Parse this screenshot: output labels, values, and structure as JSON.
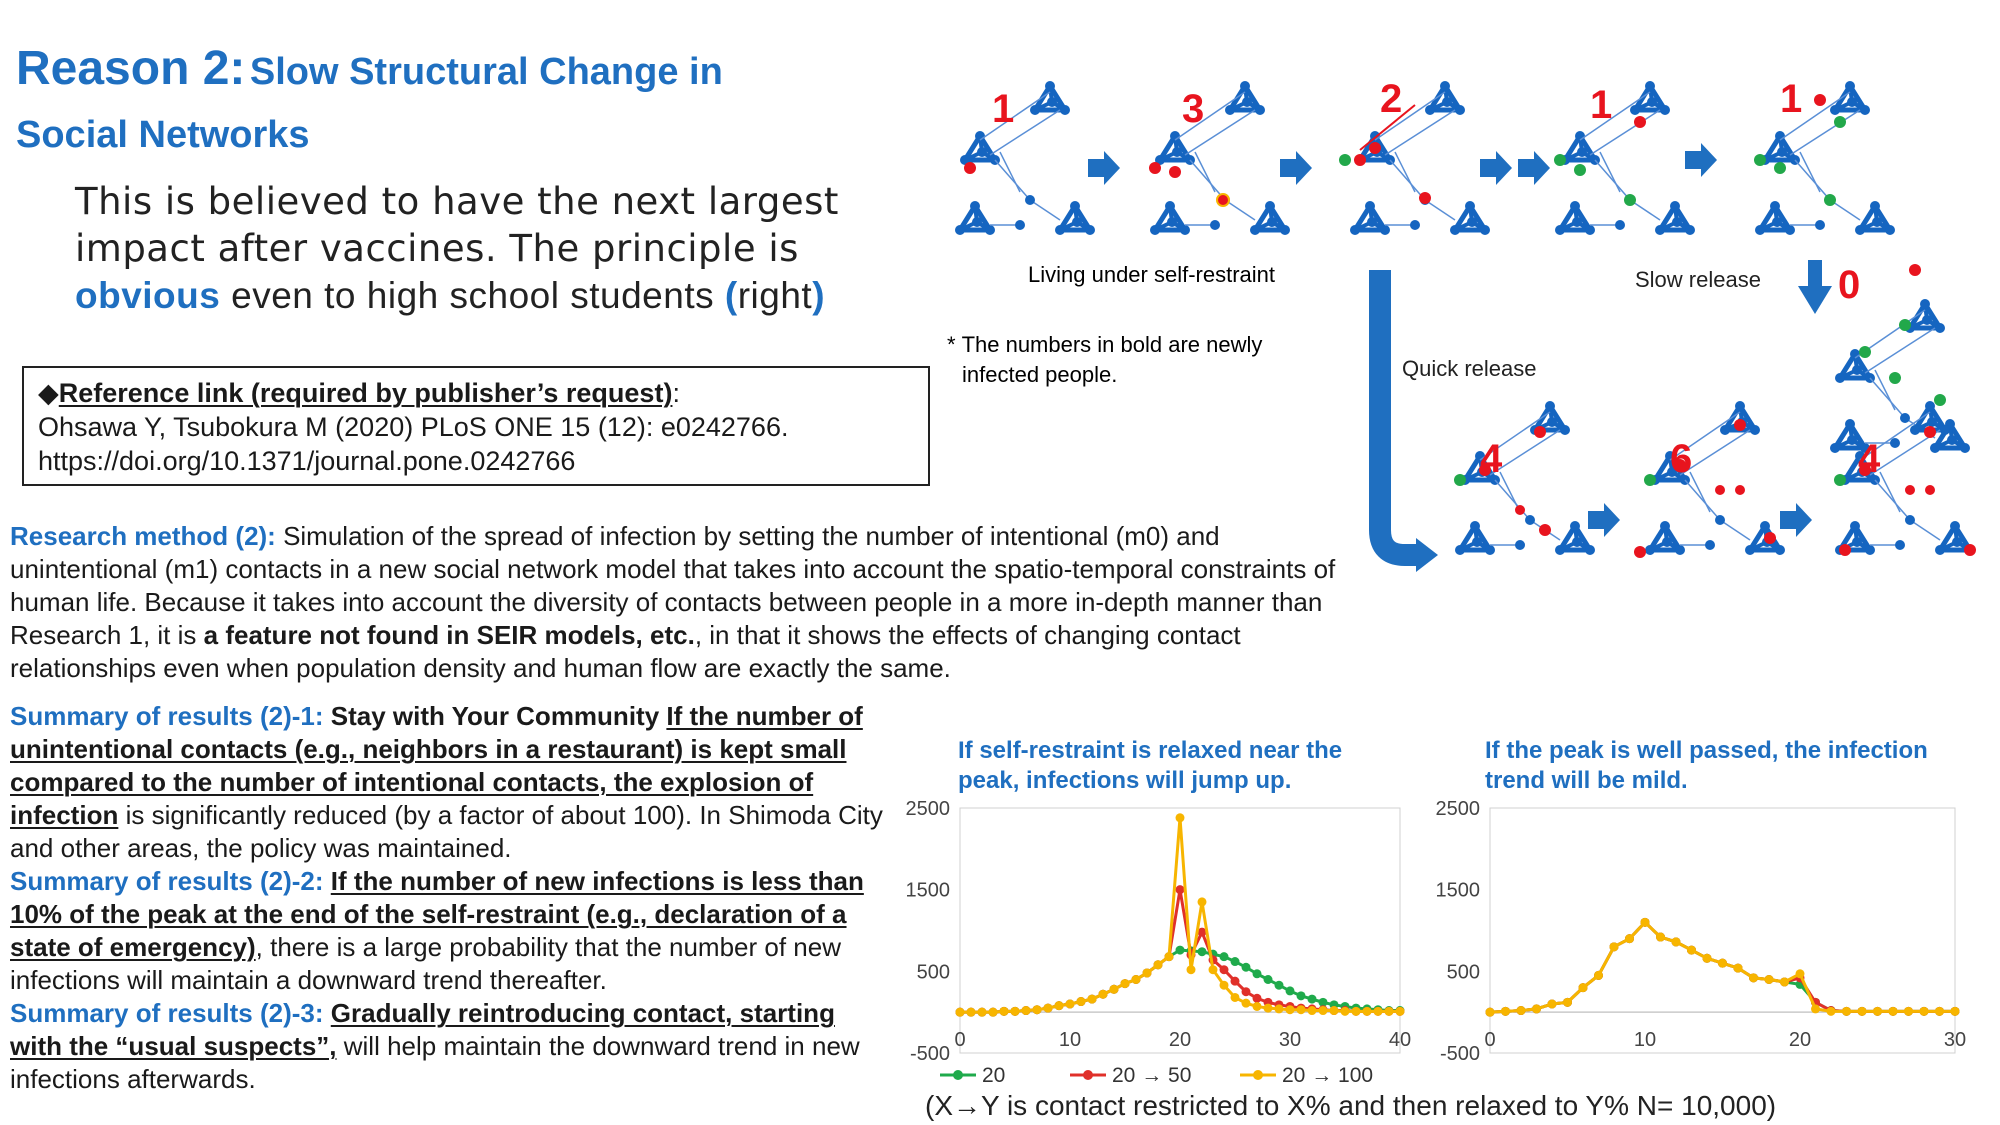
{
  "title": {
    "reason": "Reason 2:",
    "text1": "Slow Structural Change in",
    "text2": "Social Networks"
  },
  "intro": {
    "line1": "This is believed to have the next largest",
    "line2": "impact after vaccines. The principle is",
    "emph": "obvious",
    "line3_rest": " even to high school students ",
    "paren_open": "(",
    "right": "right",
    "paren_close": ")"
  },
  "reference": {
    "bullet": "◆",
    "label": "Reference link (required by publisher’s request)",
    "colon": ":",
    "citation": "Ohsawa Y, Tsubokura M (2020) PLoS ONE 15 (12): e0242766.",
    "url": "https://doi.org/10.1371/journal.pone.0242766"
  },
  "method": {
    "label": "Research method (2):",
    "t1": " Simulation of the spread of infection by setting the number of intentional (m0) and unintentional (m1) contacts in a new social network model that takes into account the spatio-temporal constraints of human life. Because it takes into account the diversity of contacts between people in a more in-depth manner than Research 1, it is ",
    "bold": "a feature not found in SEIR models, etc.",
    "t2": ", in that it shows the effects of changing contact relationships even when population density and human flow are exactly the same."
  },
  "summary": {
    "s1_label": "Summary of results (2)-1:",
    "s1_bold": " Stay with Your Community ",
    "s1_ul": "If the number of unintentional contacts (e.g., neighbors in a restaurant) is kept small compared to the number of intentional contacts, the explosion of infection",
    "s1_rest": " is significantly reduced (by a factor of about 100). In Shimoda City and other areas, the policy was maintained.",
    "s2_label": "Summary of results (2)-2:",
    "s2_ul": "If the number of new infections is less than 10% of the peak at the end of the self-restraint (e.g., declaration of a state of emergency)",
    "s2_rest": ", there is a large probability that the number of new infections will maintain a downward trend thereafter.",
    "s3_label": "Summary of results (2)-3:",
    "s3_ul": "Gradually reintroducing contact, starting with the “usual suspects”,",
    "s3_rest": " will help maintain the downward trend in new infections afterwards."
  },
  "diagram": {
    "numbers_top": [
      "1",
      "3",
      "2",
      "1",
      "1"
    ],
    "numbers_bottom": [
      "4",
      "6",
      "4"
    ],
    "slow_number": "0",
    "living_label": "Living under self-restraint",
    "slow_label": "Slow release",
    "quick_label": "Quick release",
    "note_star": "*",
    "note_line1": "The numbers in bold are newly",
    "note_line2": "infected people.",
    "colors": {
      "blue": "#1565c0",
      "red": "#e8141e",
      "green": "#22a84a",
      "arrow": "#1f6fc0"
    }
  },
  "chart_data": [
    {
      "type": "line",
      "title": "If self-restraint is relaxed near the peak, infections will jump up.",
      "xlim": [
        0,
        40
      ],
      "ylim": [
        -500,
        2500
      ],
      "x_ticks": [
        "0",
        "10",
        "20",
        "30",
        "40"
      ],
      "y_ticks": [
        "2500",
        "1500",
        "500",
        "-500"
      ],
      "x": [
        0,
        1,
        2,
        3,
        4,
        5,
        6,
        7,
        8,
        9,
        10,
        11,
        12,
        13,
        14,
        15,
        16,
        17,
        18,
        19,
        20,
        21,
        22,
        23,
        24,
        25,
        26,
        27,
        28,
        29,
        30,
        31,
        32,
        33,
        34,
        35,
        36,
        37,
        38,
        39,
        40
      ],
      "series": [
        {
          "name": "20",
          "color": "#1faa4b",
          "values": [
            0,
            0,
            0,
            0,
            10,
            10,
            20,
            30,
            50,
            80,
            100,
            130,
            160,
            220,
            280,
            350,
            400,
            480,
            580,
            680,
            760,
            750,
            740,
            710,
            680,
            620,
            550,
            470,
            400,
            330,
            260,
            200,
            160,
            120,
            90,
            70,
            50,
            40,
            30,
            20,
            20
          ]
        },
        {
          "name": "20 → 50",
          "color": "#e0302a",
          "values": [
            0,
            0,
            0,
            0,
            10,
            10,
            20,
            30,
            50,
            80,
            100,
            130,
            160,
            220,
            280,
            350,
            400,
            480,
            580,
            680,
            1500,
            700,
            980,
            640,
            520,
            380,
            250,
            170,
            120,
            90,
            70,
            50,
            40,
            30,
            20,
            20,
            10,
            10,
            10,
            10,
            10
          ]
        },
        {
          "name": "20 → 100",
          "color": "#f7b500",
          "values": [
            0,
            0,
            0,
            0,
            10,
            10,
            20,
            30,
            50,
            80,
            100,
            130,
            160,
            220,
            280,
            350,
            400,
            480,
            580,
            680,
            2380,
            520,
            1350,
            520,
            330,
            180,
            110,
            70,
            50,
            40,
            30,
            30,
            20,
            20,
            20,
            10,
            10,
            10,
            10,
            10,
            10
          ]
        }
      ]
    },
    {
      "type": "line",
      "title": "If the peak is well passed, the infection trend will be mild.",
      "xlim": [
        0,
        30
      ],
      "ylim": [
        -500,
        2500
      ],
      "x_ticks": [
        "0",
        "10",
        "20",
        "30"
      ],
      "y_ticks": [
        "2500",
        "1500",
        "500",
        "-500"
      ],
      "x": [
        0,
        1,
        2,
        3,
        4,
        5,
        6,
        7,
        8,
        9,
        10,
        11,
        12,
        13,
        14,
        15,
        16,
        17,
        18,
        19,
        20,
        21,
        22,
        23,
        24,
        25,
        26,
        27,
        28,
        29,
        30
      ],
      "series": [
        {
          "name": "20",
          "color": "#1faa4b",
          "values": [
            0,
            10,
            20,
            40,
            100,
            120,
            300,
            450,
            800,
            900,
            1100,
            920,
            860,
            760,
            660,
            600,
            540,
            420,
            400,
            370,
            340,
            120,
            20,
            10,
            10,
            10,
            10,
            10,
            10,
            10,
            10
          ]
        },
        {
          "name": "20 → 50",
          "color": "#e0302a",
          "values": [
            0,
            10,
            20,
            40,
            100,
            120,
            300,
            450,
            800,
            900,
            1100,
            920,
            860,
            760,
            660,
            600,
            540,
            420,
            400,
            370,
            420,
            120,
            20,
            10,
            10,
            10,
            10,
            10,
            10,
            10,
            10
          ]
        },
        {
          "name": "20 → 100",
          "color": "#f7b500",
          "values": [
            0,
            10,
            20,
            40,
            100,
            120,
            300,
            450,
            800,
            900,
            1100,
            920,
            860,
            760,
            660,
            600,
            540,
            420,
            400,
            370,
            470,
            40,
            10,
            10,
            10,
            10,
            10,
            10,
            10,
            10,
            10
          ]
        }
      ]
    }
  ],
  "legend": [
    "20",
    "20 → 50",
    "20 → 100"
  ],
  "footnote": "(X→Y is contact restricted to X% and then relaxed to Y% N= 10,000)"
}
